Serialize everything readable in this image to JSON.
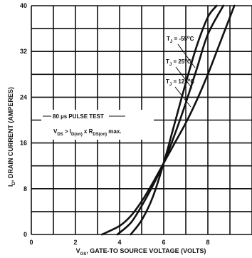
{
  "chart_data": {
    "type": "line",
    "xlabel_main": "V",
    "xlabel_sub": "GS",
    "xlabel_rest": ", GATE-TO SOURCE VOLTAGE (VOLTS)",
    "ylabel_main": "I",
    "ylabel_sub": "D",
    "ylabel_rest": ", DRAIN CURRENT (AMPERES)",
    "xlim": [
      0,
      10
    ],
    "ylim": [
      0,
      40
    ],
    "x_ticks": [
      0,
      2,
      4,
      6,
      8
    ],
    "x_tick_labels": [
      "0",
      "2",
      "4",
      "6",
      "8"
    ],
    "y_ticks": [
      0,
      8,
      16,
      24,
      32,
      40
    ],
    "y_tick_labels": [
      "0",
      "8",
      "16",
      "24",
      "32",
      "40"
    ],
    "grid": true,
    "series": [
      {
        "name": "TJ = -55°C",
        "name_parts": [
          "T",
          "J",
          " = -55",
          "o",
          "C"
        ],
        "x": [
          4.5,
          5.0,
          5.5,
          6.0,
          6.5,
          7.0,
          7.5,
          8.0,
          8.4
        ],
        "y": [
          0,
          2.5,
          6.5,
          12.5,
          19.5,
          26.5,
          33.0,
          38.0,
          40.0
        ]
      },
      {
        "name": "TJ = 25°C",
        "name_parts": [
          "T",
          "J",
          " = 25",
          "o",
          "C"
        ],
        "x": [
          3.9,
          4.5,
          5.0,
          5.5,
          6.0,
          6.5,
          7.0,
          7.5,
          8.0,
          8.7
        ],
        "y": [
          0,
          2.0,
          5.0,
          8.5,
          12.5,
          17.5,
          23.0,
          29.0,
          35.0,
          40.0
        ]
      },
      {
        "name": "TJ = 125°C",
        "name_parts": [
          "T",
          "J",
          " = 125",
          "o",
          "C"
        ],
        "x": [
          3.2,
          4.0,
          4.5,
          5.0,
          5.5,
          6.0,
          6.5,
          7.0,
          7.5,
          8.0,
          8.5,
          9.2
        ],
        "y": [
          0,
          1.5,
          3.2,
          5.8,
          9.0,
          12.5,
          16.0,
          19.5,
          23.5,
          28.0,
          33.0,
          40.0
        ]
      }
    ],
    "annotations": {
      "pulse_test": [
        "80 ",
        "µ",
        "s PULSE TEST"
      ],
      "condition": [
        "V",
        "DS",
        " > I",
        "D(on)",
        " x R",
        "DS(on)",
        " max."
      ]
    }
  }
}
